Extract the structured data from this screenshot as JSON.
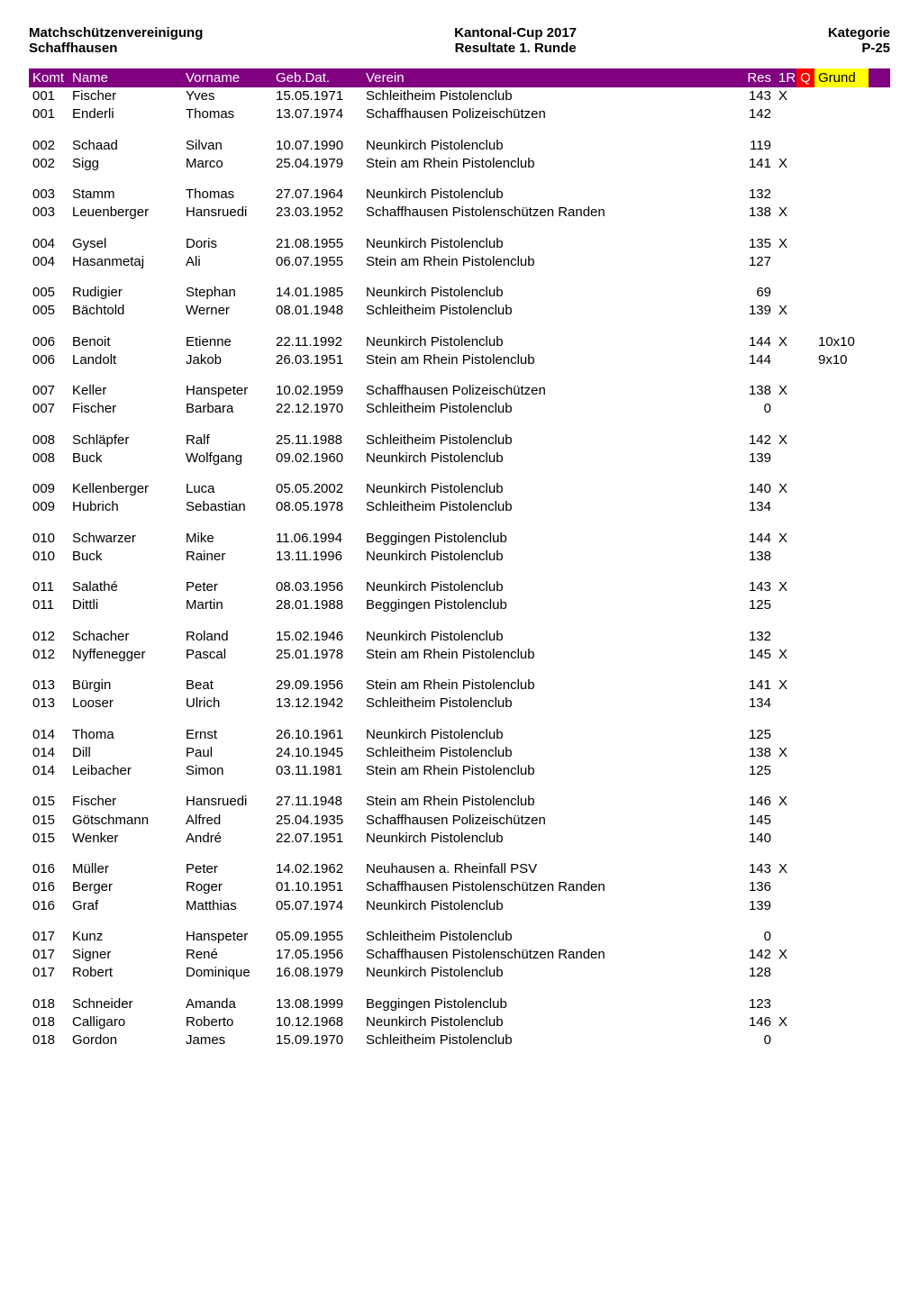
{
  "header": {
    "left1": "Matchschützenvereinigung",
    "left2": "Schaffhausen",
    "center1": "Kantonal-Cup 2017",
    "center2": "Resultate 1. Runde",
    "right1": "Kategorie",
    "right2": "P-25"
  },
  "columns": {
    "komt": "Komt",
    "name": "Name",
    "vorname": "Vorname",
    "geb": "Geb.Dat.",
    "verein": "Verein",
    "res": "Res",
    "r1": "1R",
    "q": "Q",
    "grund": "Grund"
  },
  "groups": [
    [
      {
        "komt": "001",
        "name": "Fischer",
        "vor": "Yves",
        "geb": "15.05.1971",
        "verein": "Schleitheim Pistolenclub",
        "res": "143",
        "r1": "X",
        "grund": ""
      },
      {
        "komt": "001",
        "name": "Enderli",
        "vor": "Thomas",
        "geb": "13.07.1974",
        "verein": "Schaffhausen Polizeischützen",
        "res": "142",
        "r1": "",
        "grund": ""
      }
    ],
    [
      {
        "komt": "002",
        "name": "Schaad",
        "vor": "Silvan",
        "geb": "10.07.1990",
        "verein": "Neunkirch Pistolenclub",
        "res": "119",
        "r1": "",
        "grund": ""
      },
      {
        "komt": "002",
        "name": "Sigg",
        "vor": "Marco",
        "geb": "25.04.1979",
        "verein": "Stein am Rhein Pistolenclub",
        "res": "141",
        "r1": "X",
        "grund": ""
      }
    ],
    [
      {
        "komt": "003",
        "name": "Stamm",
        "vor": "Thomas",
        "geb": "27.07.1964",
        "verein": "Neunkirch Pistolenclub",
        "res": "132",
        "r1": "",
        "grund": ""
      },
      {
        "komt": "003",
        "name": "Leuenberger",
        "vor": "Hansruedi",
        "geb": "23.03.1952",
        "verein": "Schaffhausen Pistolenschützen Randen",
        "res": "138",
        "r1": "X",
        "grund": ""
      }
    ],
    [
      {
        "komt": "004",
        "name": "Gysel",
        "vor": "Doris",
        "geb": "21.08.1955",
        "verein": "Neunkirch Pistolenclub",
        "res": "135",
        "r1": "X",
        "grund": ""
      },
      {
        "komt": "004",
        "name": "Hasanmetaj",
        "vor": "Ali",
        "geb": "06.07.1955",
        "verein": "Stein am Rhein Pistolenclub",
        "res": "127",
        "r1": "",
        "grund": ""
      }
    ],
    [
      {
        "komt": "005",
        "name": "Rudigier",
        "vor": "Stephan",
        "geb": "14.01.1985",
        "verein": "Neunkirch Pistolenclub",
        "res": "69",
        "r1": "",
        "grund": ""
      },
      {
        "komt": "005",
        "name": "Bächtold",
        "vor": "Werner",
        "geb": "08.01.1948",
        "verein": "Schleitheim Pistolenclub",
        "res": "139",
        "r1": "X",
        "grund": ""
      }
    ],
    [
      {
        "komt": "006",
        "name": "Benoit",
        "vor": "Etienne",
        "geb": "22.11.1992",
        "verein": "Neunkirch Pistolenclub",
        "res": "144",
        "r1": "X",
        "grund": "10x10"
      },
      {
        "komt": "006",
        "name": "Landolt",
        "vor": "Jakob",
        "geb": "26.03.1951",
        "verein": "Stein am Rhein Pistolenclub",
        "res": "144",
        "r1": "",
        "grund": "9x10"
      }
    ],
    [
      {
        "komt": "007",
        "name": "Keller",
        "vor": "Hanspeter",
        "geb": "10.02.1959",
        "verein": "Schaffhausen Polizeischützen",
        "res": "138",
        "r1": "X",
        "grund": ""
      },
      {
        "komt": "007",
        "name": "Fischer",
        "vor": "Barbara",
        "geb": "22.12.1970",
        "verein": "Schleitheim Pistolenclub",
        "res": "0",
        "r1": "",
        "grund": ""
      }
    ],
    [
      {
        "komt": "008",
        "name": "Schläpfer",
        "vor": "Ralf",
        "geb": "25.11.1988",
        "verein": "Schleitheim Pistolenclub",
        "res": "142",
        "r1": "X",
        "grund": ""
      },
      {
        "komt": "008",
        "name": "Buck",
        "vor": "Wolfgang",
        "geb": "09.02.1960",
        "verein": "Neunkirch Pistolenclub",
        "res": "139",
        "r1": "",
        "grund": ""
      }
    ],
    [
      {
        "komt": "009",
        "name": "Kellenberger",
        "vor": "Luca",
        "geb": "05.05.2002",
        "verein": "Neunkirch Pistolenclub",
        "res": "140",
        "r1": "X",
        "grund": ""
      },
      {
        "komt": "009",
        "name": "Hubrich",
        "vor": "Sebastian",
        "geb": "08.05.1978",
        "verein": "Schleitheim Pistolenclub",
        "res": "134",
        "r1": "",
        "grund": ""
      }
    ],
    [
      {
        "komt": "010",
        "name": "Schwarzer",
        "vor": "Mike",
        "geb": "11.06.1994",
        "verein": "Beggingen Pistolenclub",
        "res": "144",
        "r1": "X",
        "grund": ""
      },
      {
        "komt": "010",
        "name": "Buck",
        "vor": "Rainer",
        "geb": "13.11.1996",
        "verein": "Neunkirch Pistolenclub",
        "res": "138",
        "r1": "",
        "grund": ""
      }
    ],
    [
      {
        "komt": "011",
        "name": "Salathé",
        "vor": "Peter",
        "geb": "08.03.1956",
        "verein": "Neunkirch Pistolenclub",
        "res": "143",
        "r1": "X",
        "grund": ""
      },
      {
        "komt": "011",
        "name": "Dittli",
        "vor": "Martin",
        "geb": "28.01.1988",
        "verein": "Beggingen Pistolenclub",
        "res": "125",
        "r1": "",
        "grund": ""
      }
    ],
    [
      {
        "komt": "012",
        "name": "Schacher",
        "vor": "Roland",
        "geb": "15.02.1946",
        "verein": "Neunkirch Pistolenclub",
        "res": "132",
        "r1": "",
        "grund": ""
      },
      {
        "komt": "012",
        "name": "Nyffenegger",
        "vor": "Pascal",
        "geb": "25.01.1978",
        "verein": "Stein am Rhein Pistolenclub",
        "res": "145",
        "r1": "X",
        "grund": ""
      }
    ],
    [
      {
        "komt": "013",
        "name": "Bürgin",
        "vor": "Beat",
        "geb": "29.09.1956",
        "verein": "Stein am Rhein Pistolenclub",
        "res": "141",
        "r1": "X",
        "grund": ""
      },
      {
        "komt": "013",
        "name": "Looser",
        "vor": "Ulrich",
        "geb": "13.12.1942",
        "verein": "Schleitheim Pistolenclub",
        "res": "134",
        "r1": "",
        "grund": ""
      }
    ],
    [
      {
        "komt": "014",
        "name": "Thoma",
        "vor": "Ernst",
        "geb": "26.10.1961",
        "verein": "Neunkirch Pistolenclub",
        "res": "125",
        "r1": "",
        "grund": ""
      },
      {
        "komt": "014",
        "name": "Dill",
        "vor": "Paul",
        "geb": "24.10.1945",
        "verein": "Schleitheim Pistolenclub",
        "res": "138",
        "r1": "X",
        "grund": ""
      },
      {
        "komt": "014",
        "name": "Leibacher",
        "vor": "Simon",
        "geb": "03.11.1981",
        "verein": "Stein am Rhein Pistolenclub",
        "res": "125",
        "r1": "",
        "grund": ""
      }
    ],
    [
      {
        "komt": "015",
        "name": "Fischer",
        "vor": "Hansruedi",
        "geb": "27.11.1948",
        "verein": "Stein am Rhein Pistolenclub",
        "res": "146",
        "r1": "X",
        "grund": ""
      },
      {
        "komt": "015",
        "name": "Götschmann",
        "vor": "Alfred",
        "geb": "25.04.1935",
        "verein": "Schaffhausen Polizeischützen",
        "res": "145",
        "r1": "",
        "grund": ""
      },
      {
        "komt": "015",
        "name": "Wenker",
        "vor": "André",
        "geb": "22.07.1951",
        "verein": "Neunkirch Pistolenclub",
        "res": "140",
        "r1": "",
        "grund": ""
      }
    ],
    [
      {
        "komt": "016",
        "name": "Müller",
        "vor": "Peter",
        "geb": "14.02.1962",
        "verein": "Neuhausen a. Rheinfall PSV",
        "res": "143",
        "r1": "X",
        "grund": ""
      },
      {
        "komt": "016",
        "name": "Berger",
        "vor": "Roger",
        "geb": "01.10.1951",
        "verein": "Schaffhausen Pistolenschützen Randen",
        "res": "136",
        "r1": "",
        "grund": ""
      },
      {
        "komt": "016",
        "name": "Graf",
        "vor": "Matthias",
        "geb": "05.07.1974",
        "verein": "Neunkirch Pistolenclub",
        "res": "139",
        "r1": "",
        "grund": ""
      }
    ],
    [
      {
        "komt": "017",
        "name": "Kunz",
        "vor": "Hanspeter",
        "geb": "05.09.1955",
        "verein": "Schleitheim Pistolenclub",
        "res": "0",
        "r1": "",
        "grund": ""
      },
      {
        "komt": "017",
        "name": "Signer",
        "vor": "René",
        "geb": "17.05.1956",
        "verein": "Schaffhausen Pistolenschützen Randen",
        "res": "142",
        "r1": "X",
        "grund": ""
      },
      {
        "komt": "017",
        "name": "Robert",
        "vor": "Dominique",
        "geb": "16.08.1979",
        "verein": "Neunkirch Pistolenclub",
        "res": "128",
        "r1": "",
        "grund": ""
      }
    ],
    [
      {
        "komt": "018",
        "name": "Schneider",
        "vor": "Amanda",
        "geb": "13.08.1999",
        "verein": "Beggingen Pistolenclub",
        "res": "123",
        "r1": "",
        "grund": ""
      },
      {
        "komt": "018",
        "name": "Calligaro",
        "vor": "Roberto",
        "geb": "10.12.1968",
        "verein": "Neunkirch Pistolenclub",
        "res": "146",
        "r1": "X",
        "grund": ""
      },
      {
        "komt": "018",
        "name": "Gordon",
        "vor": "James",
        "geb": "15.09.1970",
        "verein": "Schleitheim Pistolenclub",
        "res": "0",
        "r1": "",
        "grund": ""
      }
    ]
  ]
}
